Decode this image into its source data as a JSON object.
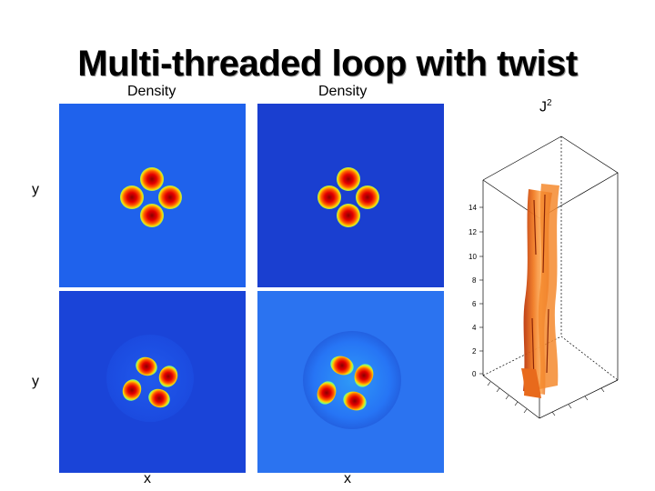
{
  "title": "Multi-threaded loop with twist",
  "labels": {
    "density_left": "Density",
    "density_right": "Density",
    "j2_base": "J",
    "j2_sup": "2",
    "y_top": "y",
    "y_bottom": "y",
    "x_left": "x",
    "x_right": "x"
  },
  "plot3d": {
    "z_ticks": [
      "14",
      "12",
      "10",
      "8",
      "6",
      "4",
      "2",
      "0"
    ]
  },
  "colors": {
    "panel_dark_blue": "#1a3fd0",
    "panel_mid_blue": "#1f5ee8",
    "panel_light_blue": "#2b73f0",
    "surface_orange": "#f0701e"
  }
}
